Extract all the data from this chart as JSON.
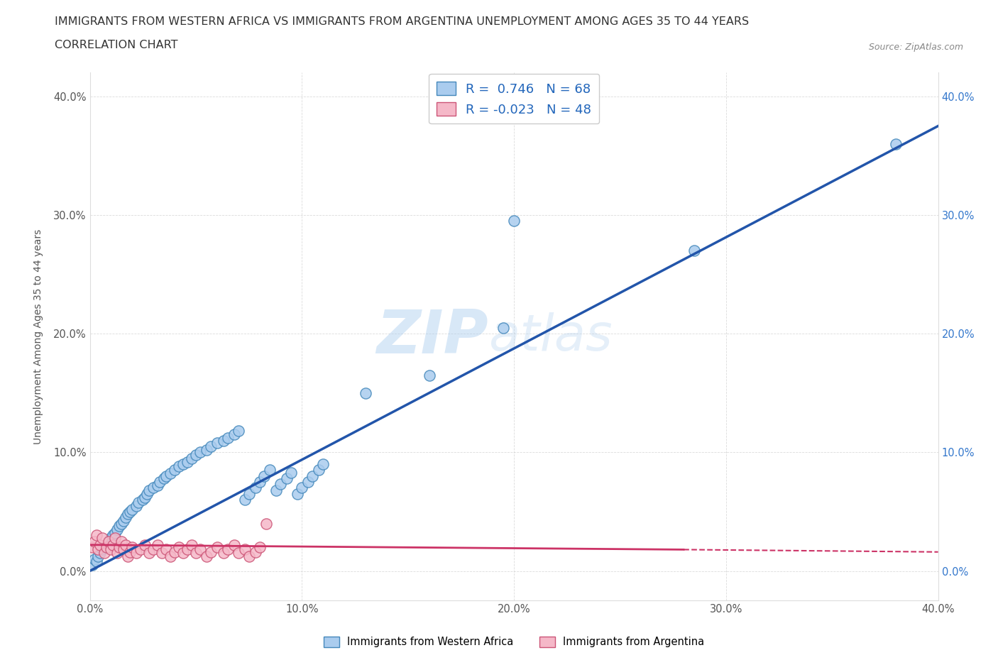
{
  "title_line1": "IMMIGRANTS FROM WESTERN AFRICA VS IMMIGRANTS FROM ARGENTINA UNEMPLOYMENT AMONG AGES 35 TO 44 YEARS",
  "title_line2": "CORRELATION CHART",
  "source_text": "Source: ZipAtlas.com",
  "watermark_zip": "ZIP",
  "watermark_atlas": "atlas",
  "ylabel": "Unemployment Among Ages 35 to 44 years",
  "xlim": [
    0.0,
    0.4
  ],
  "ylim": [
    -0.025,
    0.42
  ],
  "xticks": [
    0.0,
    0.1,
    0.2,
    0.3,
    0.4
  ],
  "yticks": [
    0.0,
    0.1,
    0.2,
    0.3,
    0.4
  ],
  "xtick_labels": [
    "0.0%",
    "10.0%",
    "20.0%",
    "30.0%",
    "40.0%"
  ],
  "ytick_labels": [
    "0.0%",
    "10.0%",
    "20.0%",
    "30.0%",
    "40.0%"
  ],
  "series1_color": "#aaccee",
  "series1_edge_color": "#4488bb",
  "series2_color": "#f5b8c8",
  "series2_edge_color": "#cc5577",
  "trend1_color": "#2255aa",
  "trend2_color": "#cc3366",
  "R1": 0.746,
  "N1": 68,
  "R2": -0.023,
  "N2": 48,
  "legend_label1": "Immigrants from Western Africa",
  "legend_label2": "Immigrants from Argentina",
  "background_color": "#ffffff",
  "grid_color": "#cccccc",
  "title_color": "#333333",
  "axis_label_color": "#555555",
  "western_africa_x": [
    0.001,
    0.002,
    0.003,
    0.004,
    0.005,
    0.006,
    0.007,
    0.008,
    0.009,
    0.01,
    0.011,
    0.012,
    0.013,
    0.014,
    0.015,
    0.016,
    0.017,
    0.018,
    0.019,
    0.02,
    0.022,
    0.023,
    0.025,
    0.026,
    0.027,
    0.028,
    0.03,
    0.032,
    0.033,
    0.035,
    0.036,
    0.038,
    0.04,
    0.042,
    0.044,
    0.046,
    0.048,
    0.05,
    0.052,
    0.055,
    0.057,
    0.06,
    0.063,
    0.065,
    0.068,
    0.07,
    0.073,
    0.075,
    0.078,
    0.08,
    0.082,
    0.085,
    0.088,
    0.09,
    0.093,
    0.095,
    0.098,
    0.1,
    0.103,
    0.105,
    0.108,
    0.11,
    0.13,
    0.16,
    0.195,
    0.2,
    0.285,
    0.38
  ],
  "western_africa_y": [
    0.005,
    0.01,
    0.008,
    0.012,
    0.015,
    0.018,
    0.02,
    0.022,
    0.025,
    0.028,
    0.03,
    0.032,
    0.035,
    0.038,
    0.04,
    0.042,
    0.045,
    0.048,
    0.05,
    0.052,
    0.055,
    0.058,
    0.06,
    0.062,
    0.065,
    0.068,
    0.07,
    0.072,
    0.075,
    0.078,
    0.08,
    0.082,
    0.085,
    0.088,
    0.09,
    0.092,
    0.095,
    0.098,
    0.1,
    0.102,
    0.105,
    0.108,
    0.11,
    0.112,
    0.115,
    0.118,
    0.06,
    0.065,
    0.07,
    0.075,
    0.08,
    0.085,
    0.068,
    0.073,
    0.078,
    0.083,
    0.065,
    0.07,
    0.075,
    0.08,
    0.085,
    0.09,
    0.15,
    0.165,
    0.205,
    0.295,
    0.27,
    0.36
  ],
  "argentina_x": [
    0.001,
    0.002,
    0.003,
    0.004,
    0.005,
    0.006,
    0.007,
    0.008,
    0.009,
    0.01,
    0.011,
    0.012,
    0.013,
    0.014,
    0.015,
    0.016,
    0.017,
    0.018,
    0.019,
    0.02,
    0.022,
    0.024,
    0.026,
    0.028,
    0.03,
    0.032,
    0.034,
    0.036,
    0.038,
    0.04,
    0.042,
    0.044,
    0.046,
    0.048,
    0.05,
    0.052,
    0.055,
    0.057,
    0.06,
    0.063,
    0.065,
    0.068,
    0.07,
    0.073,
    0.075,
    0.078,
    0.08,
    0.083
  ],
  "argentina_y": [
    0.02,
    0.025,
    0.03,
    0.018,
    0.022,
    0.028,
    0.015,
    0.02,
    0.025,
    0.018,
    0.022,
    0.028,
    0.015,
    0.02,
    0.025,
    0.018,
    0.022,
    0.012,
    0.016,
    0.02,
    0.015,
    0.018,
    0.022,
    0.015,
    0.018,
    0.022,
    0.015,
    0.018,
    0.012,
    0.016,
    0.02,
    0.015,
    0.018,
    0.022,
    0.015,
    0.018,
    0.012,
    0.016,
    0.02,
    0.015,
    0.018,
    0.022,
    0.015,
    0.018,
    0.012,
    0.016,
    0.02,
    0.04
  ]
}
